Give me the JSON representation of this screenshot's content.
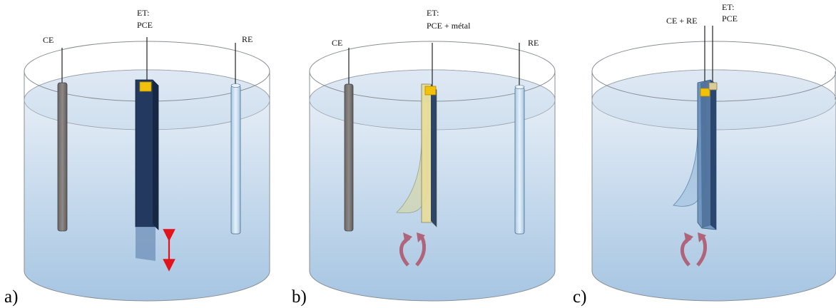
{
  "colors": {
    "water_top": "#e7eef6",
    "water_bottom": "#a9c7e2",
    "cylinder_edge": "#8a8f96",
    "counter_electrode": "#7b7775",
    "working_electrode": "#23395f",
    "reference_electrode": "#cfe3f3",
    "contact_clip": "#f2c20a",
    "metal_film": "#e6dfa3",
    "arrow_red": "#e3131b",
    "arrow_curved": "#b0647a"
  },
  "panels": [
    {
      "letter": "a)",
      "labels": {
        "ce": "CE",
        "et_line1": "ET:",
        "et_line2": "PCE",
        "re": "RE"
      }
    },
    {
      "letter": "b)",
      "labels": {
        "ce": "CE",
        "et_line1": "ET:",
        "et_line2": "PCE + métal",
        "re": "RE"
      }
    },
    {
      "letter": "c)",
      "labels": {
        "ce_re": "CE + RE",
        "et_line1": "ET:",
        "et_line2": "PCE"
      }
    }
  ]
}
